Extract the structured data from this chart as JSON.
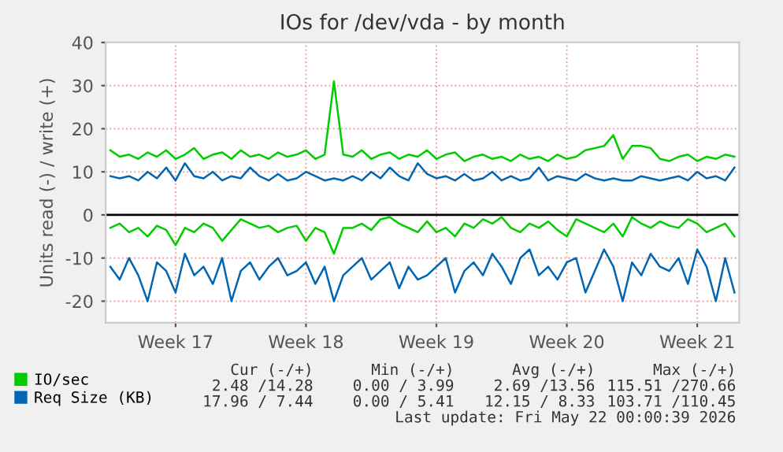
{
  "chart_data": {
    "type": "line",
    "title": "IOs for /dev/vda - by month",
    "ylabel": "Units read (-) / write (+)",
    "categories": [
      null,
      null,
      null,
      null,
      null,
      null,
      null,
      "Week 17",
      null,
      null,
      null,
      null,
      null,
      null,
      null,
      null,
      null,
      null,
      null,
      null,
      null,
      "Week 18",
      null,
      null,
      null,
      null,
      null,
      null,
      null,
      null,
      null,
      null,
      null,
      null,
      null,
      "Week 19",
      null,
      null,
      null,
      null,
      null,
      null,
      null,
      null,
      null,
      null,
      null,
      null,
      null,
      "Week 20",
      null,
      null,
      null,
      null,
      null,
      null,
      null,
      null,
      null,
      null,
      null,
      null,
      null,
      "Week 21",
      null,
      null,
      null,
      null
    ],
    "series": [
      {
        "name": "IO/sec",
        "color": "#00cc00",
        "values": [
          15,
          13.5,
          14,
          13,
          14.5,
          13.5,
          15,
          13,
          14,
          15.5,
          13,
          14,
          14.5,
          13,
          15,
          13.5,
          14,
          13,
          14.5,
          13.5,
          14,
          15,
          13,
          14,
          31,
          14,
          13.5,
          15,
          13,
          14,
          14.5,
          13,
          14,
          13.5,
          15,
          13,
          14,
          14.5,
          12.5,
          13.5,
          14,
          13,
          13.5,
          12.5,
          14,
          13,
          13.5,
          12.5,
          14,
          13,
          13.5,
          15,
          15.5,
          16,
          18.5,
          13,
          16,
          16,
          15.5,
          13,
          12.5,
          13.5,
          14,
          12.5,
          13.5,
          13,
          14,
          13.5
        ]
      },
      {
        "name": "Req Size (KB)",
        "color": "#0066b3",
        "values": [
          9,
          8.5,
          9,
          8,
          10,
          8.5,
          11,
          8,
          12,
          9,
          8.5,
          10,
          8,
          9,
          8.5,
          11,
          9,
          8,
          9.5,
          8,
          8.5,
          10,
          9,
          8,
          8.5,
          8,
          9,
          8,
          10,
          8.5,
          11,
          9,
          8,
          12,
          9.5,
          8.5,
          9,
          8,
          9.5,
          8,
          8.5,
          10,
          8,
          9,
          8,
          8.5,
          11,
          8,
          9,
          8.5,
          8,
          9.5,
          8.5,
          8,
          8.5,
          8,
          8,
          9,
          8.5,
          8,
          8.5,
          9,
          8,
          10,
          8.5,
          9,
          8,
          11
        ]
      },
      {
        "color": "#00cc00",
        "values": [
          -3,
          -2,
          -4,
          -3,
          -5,
          -2.5,
          -3.5,
          -7,
          -3,
          -4,
          -2,
          -3,
          -6,
          -3.5,
          -1,
          -2,
          -3,
          -2.5,
          -4,
          -3,
          -2.5,
          -6,
          -3,
          -4,
          -9,
          -3,
          -3,
          -2,
          -3.5,
          -1,
          -0.5,
          -2,
          -3,
          -4,
          -1.5,
          -4,
          -3,
          -5,
          -2,
          -3,
          -1,
          -2,
          -0.5,
          -3,
          -4,
          -2,
          -3,
          -1.5,
          -3.5,
          -5,
          -1,
          -2,
          -3,
          -4,
          -2,
          -5,
          -0.5,
          -2,
          -3,
          -1.5,
          -2.5,
          -3,
          -1,
          -2,
          -4,
          -3,
          -2,
          -5
        ]
      },
      {
        "color": "#0066b3",
        "values": [
          -12,
          -15,
          -10,
          -14,
          -20,
          -11,
          -13,
          -18,
          -9,
          -14,
          -12,
          -16,
          -10,
          -20,
          -13,
          -11,
          -15,
          -12,
          -10,
          -14,
          -13,
          -11,
          -16,
          -12,
          -20,
          -14,
          -12,
          -10,
          -15,
          -13,
          -11,
          -17,
          -12,
          -15,
          -14,
          -12,
          -10,
          -18,
          -13,
          -11,
          -14,
          -9,
          -12,
          -16,
          -10,
          -8,
          -14,
          -12,
          -15,
          -11,
          -10,
          -18,
          -13,
          -8,
          -12,
          -20,
          -11,
          -14,
          -9,
          -12,
          -13,
          -10,
          -16,
          -8,
          -12,
          -20,
          -10,
          -18
        ]
      }
    ],
    "ylim": [
      -25,
      40
    ],
    "yticks": [
      -20,
      -10,
      0,
      10,
      20,
      30,
      40
    ],
    "ref_lines": [
      {
        "axis": "y",
        "value": 0,
        "color": "#000000"
      }
    ],
    "grid": true,
    "legend": "bottom",
    "annotations": [
      "Cur (-/+)",
      "Min (-/+)",
      "Avg (-/+)",
      "Max (-/+)",
      "2.48 /14.28",
      "0.00 / 3.99",
      "2.69 /13.56",
      "115.51 /270.66",
      "17.96 / 7.44",
      "0.00 / 5.41",
      "12.15 / 8.33",
      "103.71 /110.45",
      "Last update: Fri May 22 00:00:39 2026"
    ]
  }
}
